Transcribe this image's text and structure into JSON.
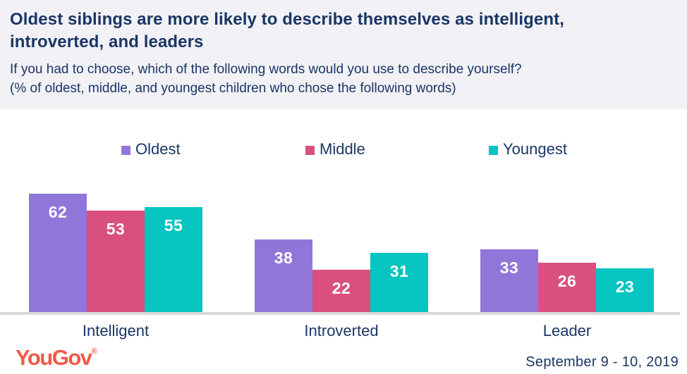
{
  "header": {
    "title": "Oldest siblings are more likely to describe themselves as intelligent, introverted, and leaders",
    "subtitle_line1": "If you had to choose, which of the following words would you use to describe yourself?",
    "subtitle_line2": "(% of oldest, middle, and youngest children who chose the following words)"
  },
  "chart_data": {
    "type": "bar",
    "categories": [
      "Intelligent",
      "Introverted",
      "Leader"
    ],
    "series": [
      {
        "name": "Oldest",
        "color": "#9076d9",
        "values": [
          62,
          38,
          33
        ]
      },
      {
        "name": "Middle",
        "color": "#d94f80",
        "values": [
          53,
          22,
          26
        ]
      },
      {
        "name": "Youngest",
        "color": "#06c4c0",
        "values": [
          55,
          31,
          23
        ]
      }
    ],
    "title": "Oldest siblings are more likely to describe themselves as intelligent, introverted, and leaders",
    "xlabel": "",
    "ylabel": "",
    "ylim": [
      0,
      70
    ],
    "value_labels_shown": true,
    "gridlines": false,
    "legend_position": "top",
    "units": "%"
  },
  "footer": {
    "logo_text": "YouGov",
    "logo_registered": "®",
    "date_range": "September 9 - 10, 2019"
  },
  "colors": {
    "header_background": "#f1f1f6",
    "text_navy": "#1b3665",
    "bar_value_text": "#ffffff",
    "baseline_gray": "#d9d9d9",
    "logo_red": "#f0594a"
  }
}
